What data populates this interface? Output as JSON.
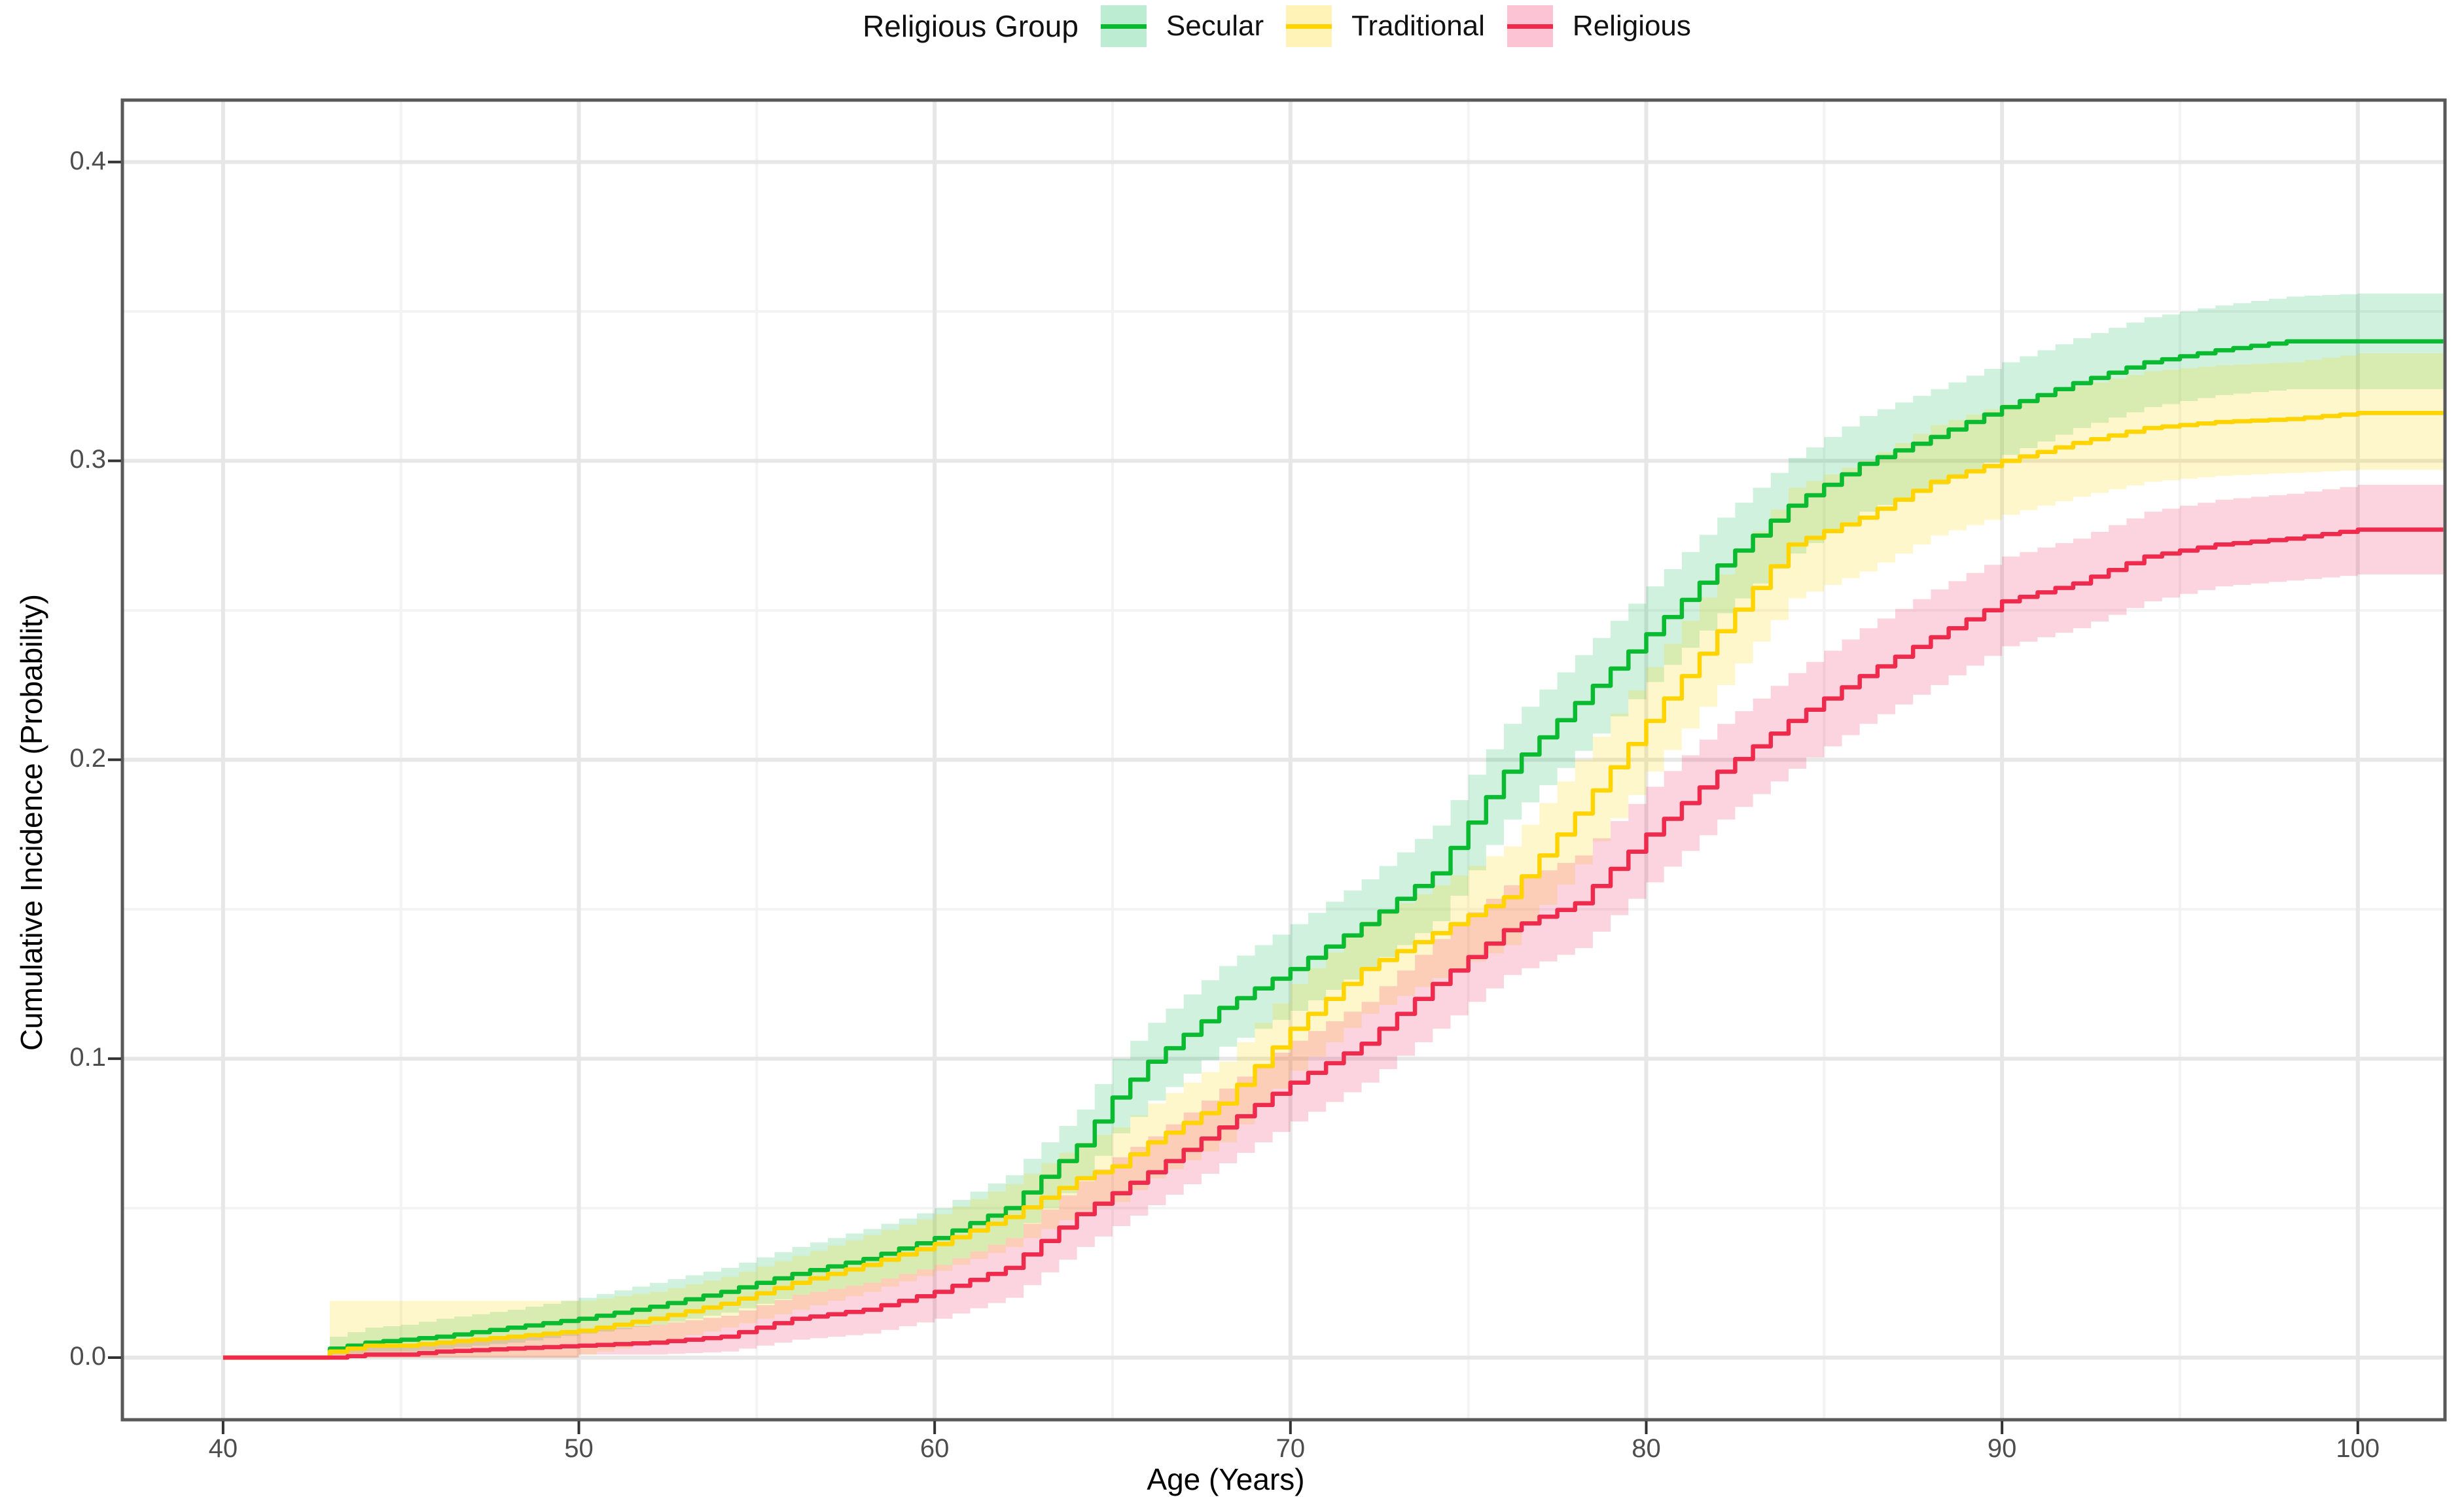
{
  "figure": {
    "background": "#ffffff",
    "panel": {
      "border_color": "#595959",
      "grid_major_color": "#e7e7e7",
      "grid_minor_color": "#f3f3f3"
    }
  },
  "legend": {
    "title": "Religious Group",
    "items": [
      {
        "label": "Secular"
      },
      {
        "label": "Traditional"
      },
      {
        "label": "Religious"
      }
    ]
  },
  "chart_data": {
    "type": "line",
    "subtype": "step-cumulative-incidence-with-confidence-bands",
    "title": "",
    "xlabel": "Age (Years)",
    "ylabel": "Cumulative Incidence (Probability)",
    "legend_title": "Religious Group",
    "legend_position": "top-center",
    "grid": "major-and-minor",
    "xlim": [
      37.17,
      102.45
    ],
    "ylim": [
      -0.0208,
      0.4207
    ],
    "x_ticks": [
      40,
      50,
      60,
      70,
      80,
      90,
      100
    ],
    "x_tick_labels": [
      "40",
      "50",
      "60",
      "70",
      "80",
      "90",
      "100"
    ],
    "x_minor_ticks": [
      45,
      55,
      65,
      75,
      85,
      95
    ],
    "y_ticks": [
      0.0,
      0.1,
      0.2,
      0.3,
      0.4
    ],
    "y_tick_labels": [
      "0.0",
      "0.1",
      "0.2",
      "0.3",
      "0.4"
    ],
    "y_minor_ticks": [
      0.05,
      0.15,
      0.25,
      0.35
    ],
    "ages": [
      40,
      43,
      44,
      45,
      46,
      48,
      50,
      52,
      54,
      56,
      58,
      60,
      62,
      64,
      65,
      66,
      68,
      70,
      72,
      74,
      76,
      78,
      80,
      82,
      84,
      86,
      88,
      90,
      92,
      94,
      96,
      98,
      100,
      102.4
    ],
    "series": [
      {
        "name": "Secular",
        "line_color": "#0aba30",
        "band_color": "rgba(16,185,90,0.20)",
        "key_color": "rgba(16,185,90,0.28)",
        "values": [
          0,
          0.003,
          0.005,
          0.006,
          0.007,
          0.01,
          0.013,
          0.017,
          0.022,
          0.028,
          0.033,
          0.04,
          0.05,
          0.071,
          0.087,
          0.099,
          0.117,
          0.13,
          0.145,
          0.162,
          0.196,
          0.219,
          0.242,
          0.265,
          0.285,
          0.299,
          0.308,
          0.318,
          0.326,
          0.333,
          0.337,
          0.34,
          0.34,
          0.34
        ],
        "upper": [
          0,
          0.007,
          0.01,
          0.011,
          0.013,
          0.016,
          0.02,
          0.025,
          0.03,
          0.037,
          0.043,
          0.05,
          0.061,
          0.083,
          0.1,
          0.112,
          0.131,
          0.145,
          0.16,
          0.178,
          0.212,
          0.235,
          0.258,
          0.281,
          0.301,
          0.315,
          0.324,
          0.333,
          0.341,
          0.348,
          0.352,
          0.355,
          0.356,
          0.356
        ],
        "lower": [
          0,
          0.001,
          0.002,
          0.002,
          0.003,
          0.005,
          0.008,
          0.011,
          0.015,
          0.021,
          0.025,
          0.031,
          0.04,
          0.06,
          0.075,
          0.086,
          0.104,
          0.116,
          0.13,
          0.146,
          0.18,
          0.203,
          0.226,
          0.249,
          0.269,
          0.283,
          0.292,
          0.302,
          0.311,
          0.318,
          0.322,
          0.324,
          0.324,
          0.324
        ]
      },
      {
        "name": "Traditional",
        "line_color": "#ffd400",
        "band_color": "rgba(255,213,0,0.20)",
        "key_color": "rgba(255,213,0,0.28)",
        "values": [
          0,
          0.002,
          0.004,
          0.004,
          0.005,
          0.007,
          0.009,
          0.013,
          0.018,
          0.025,
          0.031,
          0.038,
          0.047,
          0.06,
          0.064,
          0.072,
          0.085,
          0.11,
          0.13,
          0.142,
          0.154,
          0.182,
          0.213,
          0.243,
          0.272,
          0.281,
          0.293,
          0.3,
          0.306,
          0.311,
          0.313,
          0.314,
          0.316,
          0.316
        ],
        "upper": [
          0,
          0.019,
          0.019,
          0.019,
          0.019,
          0.019,
          0.019,
          0.022,
          0.027,
          0.034,
          0.041,
          0.048,
          0.058,
          0.072,
          0.077,
          0.085,
          0.099,
          0.125,
          0.146,
          0.158,
          0.171,
          0.2,
          0.231,
          0.262,
          0.291,
          0.3,
          0.312,
          0.319,
          0.325,
          0.33,
          0.332,
          0.333,
          0.336,
          0.336
        ],
        "lower": [
          0,
          0,
          0,
          0,
          0,
          0,
          0.001,
          0.005,
          0.01,
          0.016,
          0.022,
          0.029,
          0.037,
          0.049,
          0.052,
          0.06,
          0.072,
          0.096,
          0.115,
          0.127,
          0.138,
          0.165,
          0.196,
          0.225,
          0.254,
          0.263,
          0.275,
          0.282,
          0.288,
          0.293,
          0.295,
          0.296,
          0.297,
          0.297
        ]
      },
      {
        "name": "Religious",
        "line_color": "#ee2b4d",
        "band_color": "rgba(240,40,100,0.20)",
        "key_color": "rgba(240,40,100,0.28)",
        "values": [
          0,
          0,
          0.001,
          0.001,
          0.002,
          0.003,
          0.004,
          0.005,
          0.007,
          0.013,
          0.016,
          0.022,
          0.03,
          0.048,
          0.055,
          0.062,
          0.077,
          0.092,
          0.105,
          0.125,
          0.143,
          0.152,
          0.175,
          0.196,
          0.213,
          0.228,
          0.241,
          0.253,
          0.259,
          0.268,
          0.272,
          0.274,
          0.277,
          0.277
        ],
        "upper": [
          0,
          0.002,
          0.004,
          0.004,
          0.005,
          0.007,
          0.009,
          0.011,
          0.014,
          0.021,
          0.025,
          0.031,
          0.04,
          0.059,
          0.067,
          0.074,
          0.09,
          0.106,
          0.119,
          0.14,
          0.158,
          0.168,
          0.191,
          0.212,
          0.229,
          0.244,
          0.257,
          0.268,
          0.274,
          0.283,
          0.287,
          0.289,
          0.292,
          0.292
        ],
        "lower": [
          0,
          0,
          0,
          0,
          0,
          0,
          0.001,
          0.001,
          0.002,
          0.006,
          0.008,
          0.013,
          0.02,
          0.037,
          0.044,
          0.051,
          0.065,
          0.079,
          0.092,
          0.11,
          0.128,
          0.137,
          0.159,
          0.18,
          0.197,
          0.212,
          0.225,
          0.238,
          0.244,
          0.253,
          0.258,
          0.26,
          0.262,
          0.262
        ]
      }
    ]
  }
}
